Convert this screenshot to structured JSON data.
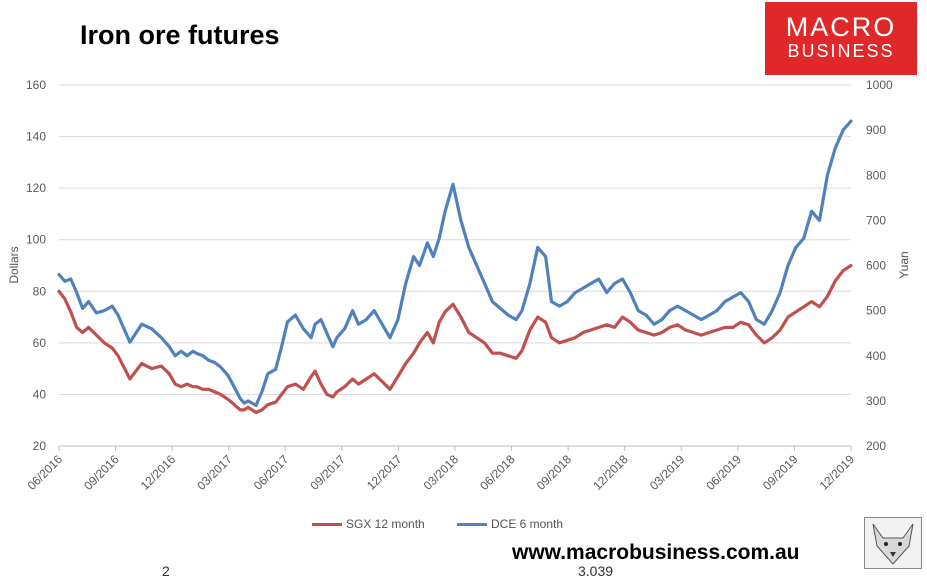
{
  "chart_data": {
    "type": "line",
    "title": "Iron ore futures",
    "ylabel": "Dollars",
    "y2label": "Yuan",
    "ylim": [
      20,
      160
    ],
    "y2lim": [
      200,
      1000
    ],
    "yticks": [
      20,
      40,
      60,
      80,
      100,
      120,
      140,
      160
    ],
    "y2ticks": [
      200,
      300,
      400,
      500,
      600,
      700,
      800,
      900,
      1000
    ],
    "xlim": [
      "06/2016",
      "12/2019"
    ],
    "xticks": [
      "06/2016",
      "09/2016",
      "12/2016",
      "03/2017",
      "06/2017",
      "09/2017",
      "12/2017",
      "03/2018",
      "06/2018",
      "09/2018",
      "12/2018",
      "03/2019",
      "06/2019",
      "09/2019",
      "12/2019"
    ],
    "series": [
      {
        "name": "SGX 12 month",
        "axis": "left",
        "color": "#c0504d",
        "x": [
          0.0,
          0.3,
          0.6,
          0.9,
          1.2,
          1.5,
          1.9,
          2.3,
          2.7,
          3.0,
          3.2,
          3.6,
          3.9,
          4.2,
          4.7,
          5.2,
          5.6,
          5.9,
          6.2,
          6.5,
          6.8,
          7.0,
          7.3,
          7.6,
          7.9,
          8.2,
          8.6,
          8.9,
          9.2,
          9.4,
          9.6,
          10.0,
          10.3,
          10.6,
          11.0,
          11.3,
          11.6,
          12.0,
          12.4,
          12.8,
          13.0,
          13.3,
          13.6,
          13.9,
          14.1,
          14.5,
          14.9,
          15.2,
          15.6,
          16.0,
          16.4,
          16.8,
          17.2,
          17.6,
          18.0,
          18.3,
          18.7,
          19.0,
          19.3,
          19.6,
          20.0,
          20.4,
          20.8,
          21.2,
          21.6,
          22.0,
          22.4,
          22.8,
          23.2,
          23.5,
          23.9,
          24.3,
          24.7,
          25.0,
          25.4,
          25.8,
          26.2,
          26.6,
          27.0,
          27.4,
          27.8,
          28.2,
          28.6,
          29.0,
          29.4,
          29.8,
          30.2,
          30.6,
          31.0,
          31.4,
          31.8,
          32.2,
          32.6,
          33.0,
          33.4,
          33.8,
          34.2,
          34.6,
          35.0,
          35.4,
          35.8,
          36.2,
          36.6,
          37.0,
          37.4,
          37.8,
          38.2,
          38.6,
          39.0,
          39.4,
          39.8,
          40.2
        ],
        "y": [
          80,
          77,
          72,
          66,
          64,
          66,
          63,
          60,
          58,
          55,
          52,
          46,
          49,
          52,
          50,
          51,
          48,
          44,
          43,
          44,
          43,
          43,
          42,
          42,
          41,
          40,
          38,
          36,
          34,
          34,
          35,
          33,
          34,
          36,
          37,
          40,
          43,
          44,
          42,
          47,
          49,
          44,
          40,
          39,
          41,
          43,
          46,
          44,
          46,
          48,
          45,
          42,
          47,
          52,
          56,
          60,
          64,
          60,
          68,
          72,
          75,
          70,
          64,
          62,
          60,
          56,
          56,
          55,
          54,
          57,
          65,
          70,
          68,
          62,
          60,
          61,
          62,
          64,
          65,
          66,
          67,
          66,
          70,
          68,
          65,
          64,
          63,
          64,
          66,
          67,
          65,
          64,
          63,
          64,
          65,
          66,
          66,
          68,
          67,
          63,
          60,
          62,
          65,
          70,
          72,
          74,
          76,
          74,
          78,
          84,
          88,
          90
        ]
      },
      {
        "name": "DCE 6 month",
        "axis": "right",
        "color": "#4f81bd",
        "x": [
          0.0,
          0.3,
          0.6,
          0.9,
          1.2,
          1.5,
          1.9,
          2.3,
          2.7,
          3.0,
          3.2,
          3.6,
          3.9,
          4.2,
          4.7,
          5.2,
          5.6,
          5.9,
          6.2,
          6.5,
          6.8,
          7.0,
          7.3,
          7.6,
          7.9,
          8.2,
          8.6,
          8.9,
          9.2,
          9.4,
          9.6,
          10.0,
          10.3,
          10.6,
          11.0,
          11.3,
          11.6,
          12.0,
          12.4,
          12.8,
          13.0,
          13.3,
          13.6,
          13.9,
          14.1,
          14.5,
          14.9,
          15.2,
          15.6,
          16.0,
          16.4,
          16.8,
          17.2,
          17.6,
          18.0,
          18.3,
          18.7,
          19.0,
          19.3,
          19.6,
          20.0,
          20.4,
          20.8,
          21.2,
          21.6,
          22.0,
          22.4,
          22.8,
          23.2,
          23.5,
          23.9,
          24.3,
          24.7,
          25.0,
          25.4,
          25.8,
          26.2,
          26.6,
          27.0,
          27.4,
          27.8,
          28.2,
          28.6,
          29.0,
          29.4,
          29.8,
          30.2,
          30.6,
          31.0,
          31.4,
          31.8,
          32.2,
          32.6,
          33.0,
          33.4,
          33.8,
          34.2,
          34.6,
          35.0,
          35.4,
          35.8,
          36.2,
          36.6,
          37.0,
          37.4,
          37.8,
          38.2,
          38.6,
          39.0,
          39.4,
          39.8,
          40.2
        ],
        "y": [
          580,
          565,
          570,
          540,
          505,
          520,
          495,
          500,
          510,
          490,
          470,
          430,
          450,
          470,
          460,
          440,
          420,
          400,
          410,
          400,
          410,
          405,
          400,
          390,
          385,
          375,
          355,
          330,
          305,
          295,
          300,
          290,
          320,
          360,
          370,
          420,
          475,
          490,
          460,
          440,
          470,
          480,
          450,
          420,
          440,
          460,
          500,
          470,
          480,
          500,
          470,
          440,
          480,
          560,
          620,
          600,
          650,
          620,
          660,
          720,
          780,
          700,
          640,
          600,
          560,
          520,
          505,
          490,
          480,
          500,
          560,
          640,
          620,
          520,
          510,
          520,
          540,
          550,
          560,
          570,
          540,
          560,
          570,
          540,
          500,
          490,
          470,
          480,
          500,
          510,
          500,
          490,
          480,
          490,
          500,
          520,
          530,
          540,
          520,
          480,
          470,
          500,
          540,
          600,
          640,
          660,
          720,
          700,
          800,
          860,
          900,
          920
        ]
      }
    ]
  },
  "header": {
    "logo_line1": "MACRO",
    "logo_line2": "BUSINESS"
  },
  "footer": {
    "website": "www.macrobusiness.com.au",
    "stray_left": "2",
    "stray_right": "3.039"
  }
}
